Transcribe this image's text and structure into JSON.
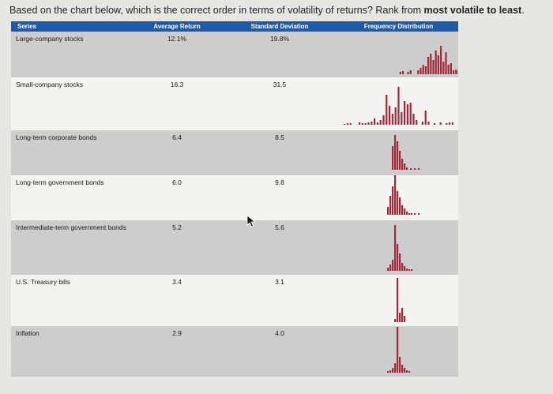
{
  "question": {
    "prefix": "Based on the chart below, which is the correct order in terms of volatility of returns? Rank from ",
    "bold": "most volatile to least",
    "suffix": "."
  },
  "headers": {
    "series": "Series",
    "avg": "Average Return",
    "sd": "Standard Deviation",
    "freq": "Frequency Distribution"
  },
  "rows": [
    {
      "series": "Large-company stocks",
      "avg": "12.1%",
      "sd": "19.8%"
    },
    {
      "series": "Small-company stocks",
      "avg": "16.3",
      "sd": "31.5"
    },
    {
      "series": "Long-term corporate bonds",
      "avg": "6.4",
      "sd": "8.5"
    },
    {
      "series": "Long-term government bonds",
      "avg": "6.0",
      "sd": "9.8"
    },
    {
      "series": "Intermediate-term government bonds",
      "avg": "5.2",
      "sd": "5.6"
    },
    {
      "series": "U.S. Treasury bills",
      "avg": "3.4",
      "sd": "3.1"
    },
    {
      "series": "Inflation",
      "avg": "2.9",
      "sd": "4.0"
    }
  ],
  "colors": {
    "header": "#1f5aa8",
    "bar": "#a3283a"
  },
  "icons": {
    "cursor": "mouse-pointer-icon"
  }
}
